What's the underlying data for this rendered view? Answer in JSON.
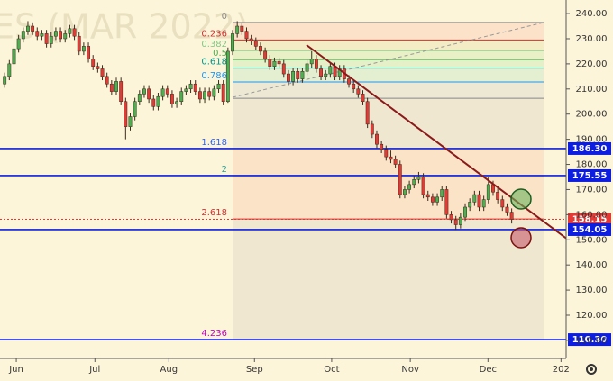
{
  "chart_data": {
    "type": "candlestick",
    "watermark": "ES (MAR 2022)",
    "ylim": [
      102.8,
      245.4
    ],
    "yticks": [
      110,
      120,
      130,
      140,
      150,
      160,
      170,
      180,
      190,
      200,
      210,
      220,
      230,
      240
    ],
    "yticks_labels": [
      "110.00",
      "120.00",
      "130.00",
      "140.00",
      "150.00",
      "160.00",
      "170.00",
      "180.00",
      "190.00",
      "200.00",
      "210.00",
      "220.00",
      "230.00",
      "240.00"
    ],
    "xlim": [
      -1,
      120.7
    ],
    "xticks": [
      {
        "value": 2.5,
        "label": "Jun"
      },
      {
        "value": 19.4,
        "label": "Jul"
      },
      {
        "value": 35.3,
        "label": "Aug"
      },
      {
        "value": 53.7,
        "label": "Sep"
      },
      {
        "value": 70.3,
        "label": "Oct"
      },
      {
        "value": 87.2,
        "label": "Nov"
      },
      {
        "value": 103.9,
        "label": "Dec"
      },
      {
        "value": 119.6,
        "label": "202"
      }
    ],
    "up_color": "#4caf50",
    "down_color": "#e53935",
    "ohlc": [
      [
        212,
        216.5,
        210.5,
        215
      ],
      [
        215,
        221.5,
        213.5,
        220
      ],
      [
        220,
        227.5,
        218.5,
        226
      ],
      [
        226,
        231.5,
        224.5,
        230
      ],
      [
        230,
        234.5,
        228.5,
        233
      ],
      [
        233,
        237,
        231.5,
        235
      ],
      [
        235,
        236.5,
        231.5,
        233
      ],
      [
        233,
        234.5,
        229.5,
        231
      ],
      [
        231,
        233.5,
        229.5,
        232
      ],
      [
        232,
        233.5,
        226.5,
        228
      ],
      [
        228,
        232.5,
        226.5,
        231
      ],
      [
        231,
        234.5,
        229.5,
        233
      ],
      [
        233,
        234.5,
        228.5,
        230
      ],
      [
        230,
        233.5,
        228.5,
        232
      ],
      [
        232,
        235.5,
        230.5,
        234
      ],
      [
        234,
        235.5,
        229.5,
        231
      ],
      [
        231,
        232.5,
        223.5,
        225
      ],
      [
        225,
        228.5,
        223.5,
        227
      ],
      [
        227,
        228.5,
        220.5,
        222
      ],
      [
        222,
        223.5,
        217.5,
        219
      ],
      [
        219,
        220.5,
        216.5,
        218
      ],
      [
        218,
        219.5,
        213.5,
        215
      ],
      [
        215,
        216.5,
        210.5,
        212
      ],
      [
        212,
        213.5,
        207.5,
        209
      ],
      [
        209,
        214.5,
        207.5,
        213
      ],
      [
        213,
        214.5,
        203.5,
        205
      ],
      [
        205,
        206.5,
        190,
        195
      ],
      [
        195,
        200.5,
        193.5,
        199
      ],
      [
        199,
        206.5,
        197.5,
        205
      ],
      [
        205,
        209.5,
        203.5,
        208
      ],
      [
        208,
        211.5,
        206.5,
        210
      ],
      [
        210,
        211.5,
        204.5,
        206
      ],
      [
        206,
        207.5,
        201.5,
        203
      ],
      [
        203,
        208.5,
        201.5,
        207
      ],
      [
        207,
        211.5,
        205.5,
        210
      ],
      [
        210,
        211.5,
        206.5,
        208
      ],
      [
        208,
        209.5,
        202.5,
        204
      ],
      [
        204,
        206.5,
        202.5,
        205
      ],
      [
        205,
        210.5,
        203.5,
        209
      ],
      [
        209,
        211.5,
        207.5,
        210
      ],
      [
        210,
        213.5,
        208.5,
        212
      ],
      [
        212,
        213.5,
        207.5,
        209
      ],
      [
        209,
        210.5,
        204.5,
        206
      ],
      [
        206,
        210.5,
        204.5,
        209
      ],
      [
        209,
        210.5,
        205.5,
        207
      ],
      [
        207,
        211.5,
        205.5,
        210
      ],
      [
        210,
        213.5,
        208.5,
        212
      ],
      [
        212,
        213.5,
        203.5,
        205
      ],
      [
        205,
        226.5,
        204.5,
        225
      ],
      [
        225,
        233.5,
        223.5,
        232
      ],
      [
        232,
        237,
        230.5,
        235
      ],
      [
        235,
        236.5,
        231.5,
        233
      ],
      [
        233,
        234.5,
        228.5,
        230
      ],
      [
        230,
        231.5,
        227.5,
        229
      ],
      [
        229,
        230.5,
        225.5,
        227
      ],
      [
        227,
        228.5,
        223.5,
        225
      ],
      [
        225,
        226.5,
        220.5,
        222
      ],
      [
        222,
        223.5,
        217.5,
        219
      ],
      [
        219,
        222.5,
        217.5,
        221
      ],
      [
        221,
        222.5,
        218.5,
        220
      ],
      [
        220,
        221.5,
        214.5,
        216
      ],
      [
        216,
        217.5,
        211.5,
        213
      ],
      [
        213,
        218.5,
        211.5,
        217
      ],
      [
        217,
        218.5,
        212.5,
        214
      ],
      [
        214,
        218.5,
        212.5,
        217
      ],
      [
        217,
        221.5,
        215.5,
        220
      ],
      [
        220,
        225,
        218.5,
        222
      ],
      [
        222,
        223.5,
        216.5,
        218
      ],
      [
        218,
        219.5,
        213.5,
        215
      ],
      [
        215,
        217.5,
        213.5,
        216
      ],
      [
        216,
        220.5,
        214.5,
        219
      ],
      [
        219,
        220.5,
        213.5,
        215
      ],
      [
        215,
        219.5,
        213.5,
        218
      ],
      [
        218,
        219.5,
        212.5,
        214
      ],
      [
        214,
        215.5,
        210.5,
        212
      ],
      [
        212,
        213.5,
        208.5,
        210
      ],
      [
        210,
        211.5,
        206.5,
        208
      ],
      [
        208,
        209.5,
        203.5,
        205
      ],
      [
        205,
        206.5,
        194.5,
        196
      ],
      [
        196,
        197.5,
        190.5,
        192
      ],
      [
        192,
        193.5,
        186.5,
        188
      ],
      [
        188,
        189.5,
        184.5,
        186
      ],
      [
        186,
        187.5,
        181.5,
        183
      ],
      [
        183,
        185.5,
        180.5,
        182
      ],
      [
        182,
        183.5,
        178.5,
        180
      ],
      [
        180,
        181.5,
        166.5,
        168
      ],
      [
        168,
        171.5,
        166.5,
        170
      ],
      [
        170,
        173.5,
        168.5,
        172
      ],
      [
        172,
        175.5,
        170.5,
        174
      ],
      [
        174,
        177,
        172.5,
        175
      ],
      [
        175,
        176.5,
        166.5,
        168
      ],
      [
        168,
        169.5,
        165.5,
        167
      ],
      [
        167,
        168.5,
        163.5,
        165
      ],
      [
        165,
        168.5,
        163.5,
        167
      ],
      [
        167,
        171.5,
        165.5,
        170
      ],
      [
        170,
        171.5,
        158.5,
        160
      ],
      [
        160,
        161.5,
        156.5,
        158
      ],
      [
        158,
        159.5,
        154,
        156
      ],
      [
        156,
        160.5,
        154.5,
        159
      ],
      [
        159,
        164.5,
        157.5,
        163
      ],
      [
        163,
        166.5,
        161.5,
        165
      ],
      [
        165,
        169.5,
        163.5,
        168
      ],
      [
        168,
        169.5,
        161.5,
        163
      ],
      [
        163,
        167.5,
        161.5,
        166
      ],
      [
        166,
        175,
        164.5,
        172
      ],
      [
        172,
        173.5,
        167.5,
        169
      ],
      [
        169,
        170.5,
        164.5,
        166
      ],
      [
        166,
        167.5,
        161.5,
        163
      ],
      [
        163,
        164.5,
        159.5,
        161
      ],
      [
        161,
        162.5,
        156.5,
        158.15
      ]
    ],
    "fib_levels": [
      {
        "label": "0",
        "value": 236.5,
        "color": "#888888",
        "fill": "#fbe2c9"
      },
      {
        "label": "0.236",
        "value": 229.5,
        "color": "#d32f2f",
        "fill": "#f4ecc4"
      },
      {
        "label": "0.382",
        "value": 225.3,
        "color": "#81c784",
        "fill": "#eaf0c6"
      },
      {
        "label": "0.5",
        "value": 221.7,
        "color": "#4caf50",
        "fill": "#e6f0c8"
      },
      {
        "label": "0.618",
        "value": 218.3,
        "color": "#009688",
        "fill": "#e4efd2"
      },
      {
        "label": "0.786",
        "value": 212.8,
        "color": "#2196f3",
        "fill": "#ece8d4"
      },
      {
        "value": 206.3,
        "color": "#888888",
        "fill": "#efe7cf"
      },
      {
        "label": "1.618",
        "value": 186.3,
        "color": "#2962ff",
        "fill": "#fbe3c8"
      },
      {
        "label": "2",
        "value": 175.5,
        "color": "#26a69a",
        "fill": "#fbe3c8"
      },
      {
        "label": "2.618",
        "value": 158.3,
        "color": "#d32f2f",
        "fill": "#efe7cf"
      },
      {
        "label": "4.236",
        "value": 110.3,
        "color": "#c000c0"
      }
    ],
    "levels": [
      {
        "value": 186.3,
        "label": "186.30",
        "color": "#0d1ee0"
      },
      {
        "value": 175.55,
        "label": "175.55",
        "color": "#0d1ee0"
      },
      {
        "value": 158.15,
        "label": "158.15",
        "color": "#e53935"
      },
      {
        "value": 154.05,
        "label": "154.05",
        "color": "#0d1ee0"
      },
      {
        "value": 110.3,
        "label": "110.30",
        "color": "#0d1ee0"
      }
    ]
  }
}
